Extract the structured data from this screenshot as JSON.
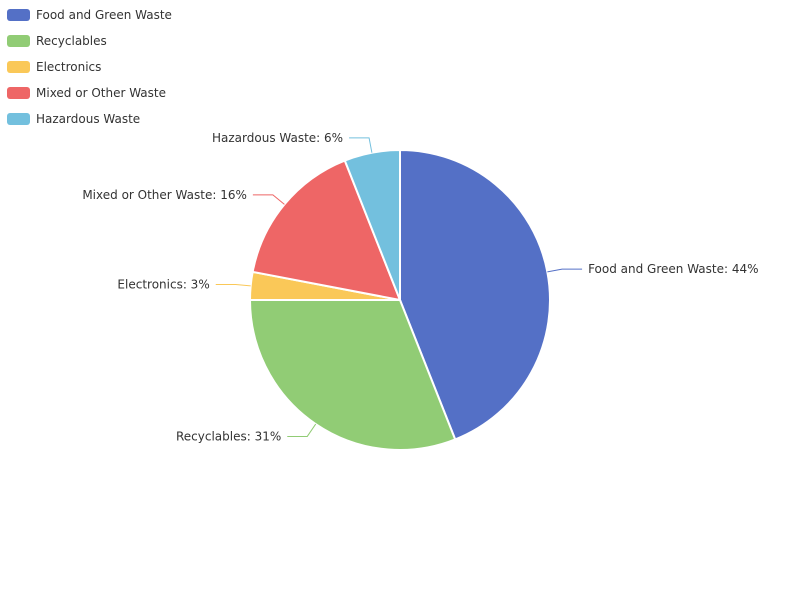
{
  "chart_data": {
    "type": "pie",
    "title": "",
    "slices": [
      {
        "name": "Food and Green Waste",
        "value": 44,
        "color": "#5470c6",
        "label": "Food and Green Waste: 44%"
      },
      {
        "name": "Recyclables",
        "value": 31,
        "color": "#91cc75",
        "label": "Recyclables: 31%"
      },
      {
        "name": "Electronics",
        "value": 3,
        "color": "#fac858",
        "label": "Electronics: 3%"
      },
      {
        "name": "Mixed or Other Waste",
        "value": 16,
        "color": "#ee6666",
        "label": "Mixed or Other Waste: 16%"
      },
      {
        "name": "Hazardous Waste",
        "value": 6,
        "color": "#73c0de",
        "label": "Hazardous Waste: 6%"
      }
    ],
    "legend_placement": "top-left",
    "start_angle": "top, clockwise"
  }
}
